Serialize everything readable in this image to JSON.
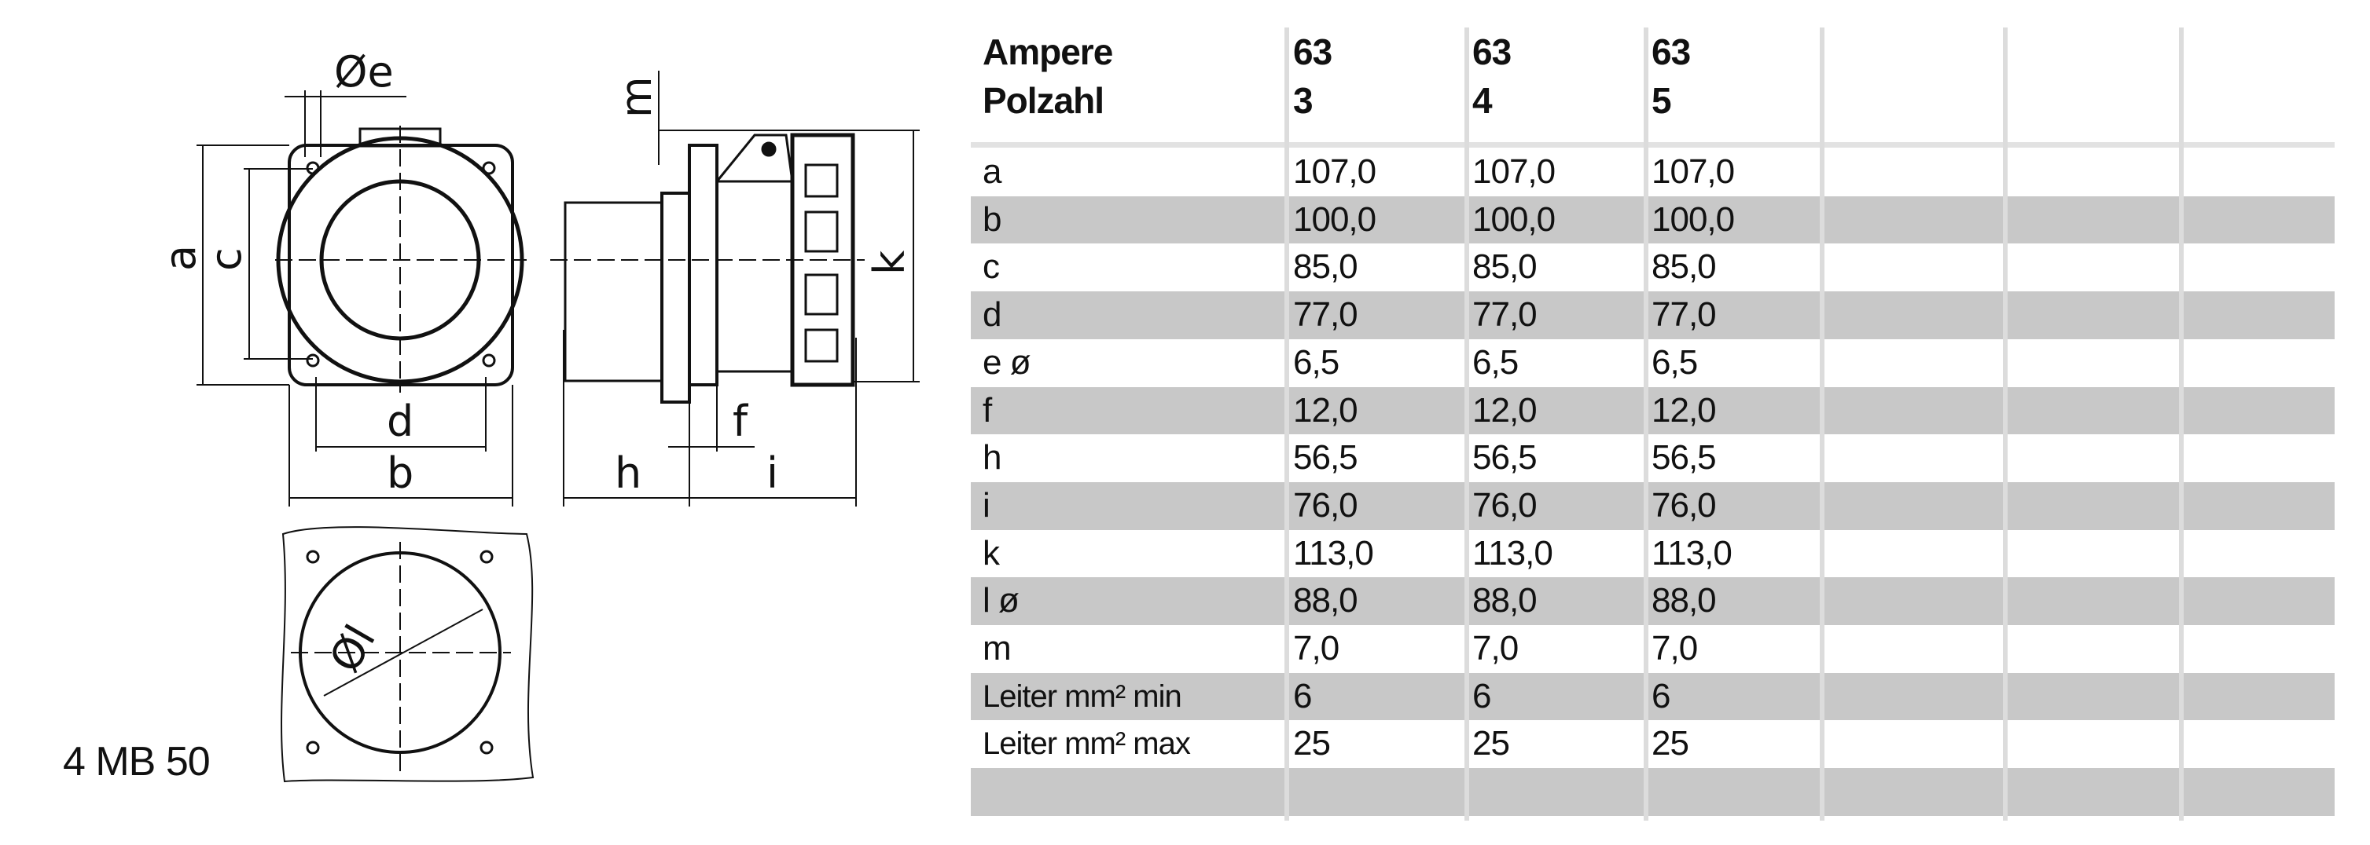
{
  "drawing": {
    "labels": {
      "e": "Øe",
      "a": "a",
      "c": "c",
      "d": "d",
      "b": "b",
      "m": "m",
      "k": "k",
      "f": "f",
      "h": "h",
      "i": "i",
      "l": "Øl"
    },
    "model": "4 MB 50"
  },
  "table": {
    "header": {
      "row1_label": "Ampere",
      "row2_label": "Polzahl",
      "columns": [
        {
          "ampere": "63",
          "polzahl": "3"
        },
        {
          "ampere": "63",
          "polzahl": "4"
        },
        {
          "ampere": "63",
          "polzahl": "5"
        }
      ]
    },
    "rows": [
      {
        "label": "a",
        "values": [
          "107,0",
          "107,0",
          "107,0"
        ]
      },
      {
        "label": "b",
        "values": [
          "100,0",
          "100,0",
          "100,0"
        ]
      },
      {
        "label": "c",
        "values": [
          "85,0",
          "85,0",
          "85,0"
        ]
      },
      {
        "label": "d",
        "values": [
          "77,0",
          "77,0",
          "77,0"
        ]
      },
      {
        "label": "e ø",
        "values": [
          "6,5",
          "6,5",
          "6,5"
        ]
      },
      {
        "label": "f",
        "values": [
          "12,0",
          "12,0",
          "12,0"
        ]
      },
      {
        "label": "h",
        "values": [
          "56,5",
          "56,5",
          "56,5"
        ]
      },
      {
        "label": "i",
        "values": [
          "76,0",
          "76,0",
          "76,0"
        ]
      },
      {
        "label": "k",
        "values": [
          "113,0",
          "113,0",
          "113,0"
        ]
      },
      {
        "label": "l ø",
        "values": [
          "88,0",
          "88,0",
          "88,0"
        ]
      },
      {
        "label": "m",
        "values": [
          "7,0",
          "7,0",
          "7,0"
        ]
      },
      {
        "label": "Leiter mm² min",
        "values": [
          "6",
          "6",
          "6"
        ]
      },
      {
        "label": "Leiter mm² max",
        "values": [
          "25",
          "25",
          "25"
        ]
      },
      {
        "label": "",
        "values": [
          "",
          "",
          ""
        ]
      }
    ],
    "colors": {
      "stripe": "#c8c8c8",
      "grid": "#dcdcdc"
    }
  }
}
